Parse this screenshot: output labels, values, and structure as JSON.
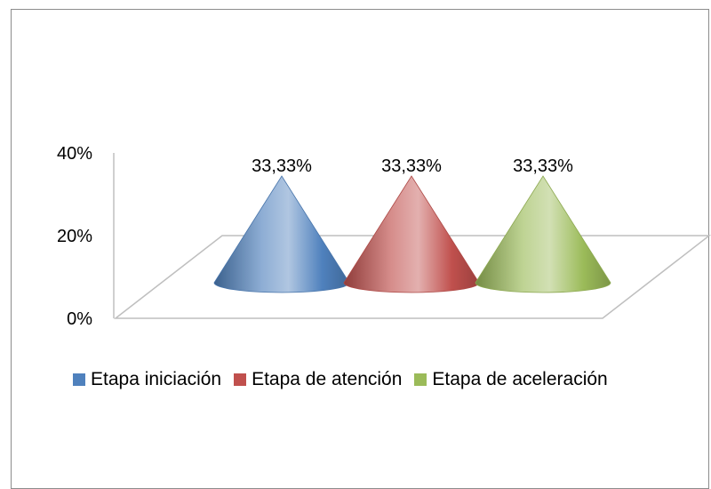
{
  "chart_data": {
    "type": "bar",
    "subtype": "3d-cone",
    "title": "",
    "xlabel": "",
    "ylabel": "",
    "y_ticks": [
      "0%",
      "20%",
      "40%"
    ],
    "ylim": [
      0,
      40
    ],
    "categories": [
      ""
    ],
    "series": [
      {
        "name": "Etapa iniciación",
        "values": [
          33.33
        ],
        "label": "33,33%",
        "color": "#4f81bd"
      },
      {
        "name": "Etapa de atención",
        "values": [
          33.33
        ],
        "label": "33,33%",
        "color": "#c0504d"
      },
      {
        "name": "Etapa de aceleración",
        "values": [
          33.33
        ],
        "label": "33,33%",
        "color": "#9bbb59"
      }
    ],
    "grid": false,
    "legend_position": "bottom"
  }
}
